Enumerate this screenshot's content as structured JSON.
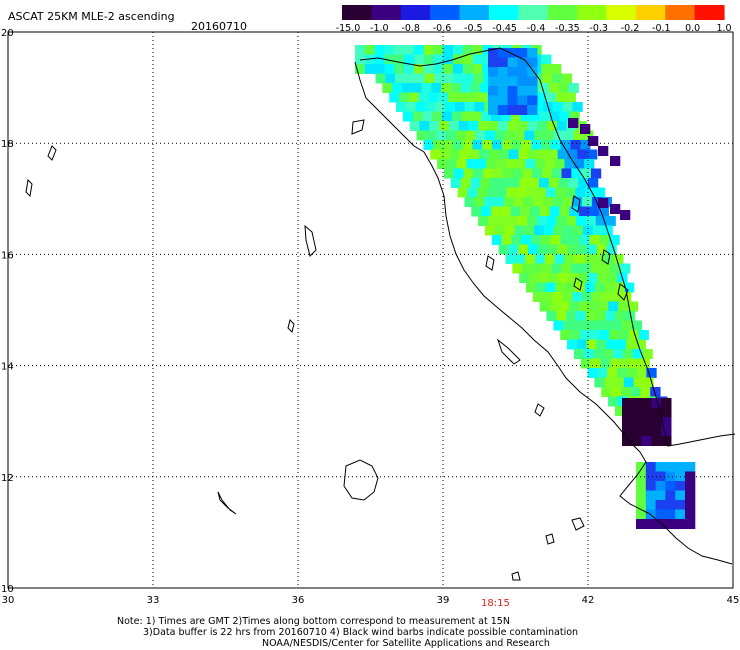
{
  "title": "ASCAT 25KM MLE-2 ascending",
  "date": "20160710",
  "colorbar": {
    "labels": [
      "-15.0",
      "-1.0",
      "-0.8",
      "-0.6",
      "-0.5",
      "-0.45",
      "-0.4",
      "-0.35",
      "-0.3",
      "-0.2",
      "-0.1",
      "0.0",
      "1.0"
    ],
    "colors": [
      "#2a0033",
      "#3a0080",
      "#1a1ae0",
      "#0060ff",
      "#00b0ff",
      "#00ffff",
      "#50ffb0",
      "#60ff40",
      "#90ff10",
      "#d8ff00",
      "#ffd000",
      "#ff7000",
      "#ff1000"
    ]
  },
  "axes": {
    "x_ticks": [
      "30",
      "33",
      "36",
      "39",
      "42",
      "45"
    ],
    "y_ticks": [
      "10",
      "12",
      "14",
      "16",
      "18",
      "20"
    ],
    "lon_range": [
      30,
      45
    ],
    "lat_range": [
      10,
      20
    ]
  },
  "time_label": "18:15",
  "notes": [
    "Note: 1) Times are GMT 2)Times along bottom correspond to measurement at 15N",
    "3)Data buffer is 22 hrs from 20160710 4) Black wind barbs indicate possible contamination",
    "NOAA/NESDIS/Center for Satellite Applications and Research"
  ]
}
